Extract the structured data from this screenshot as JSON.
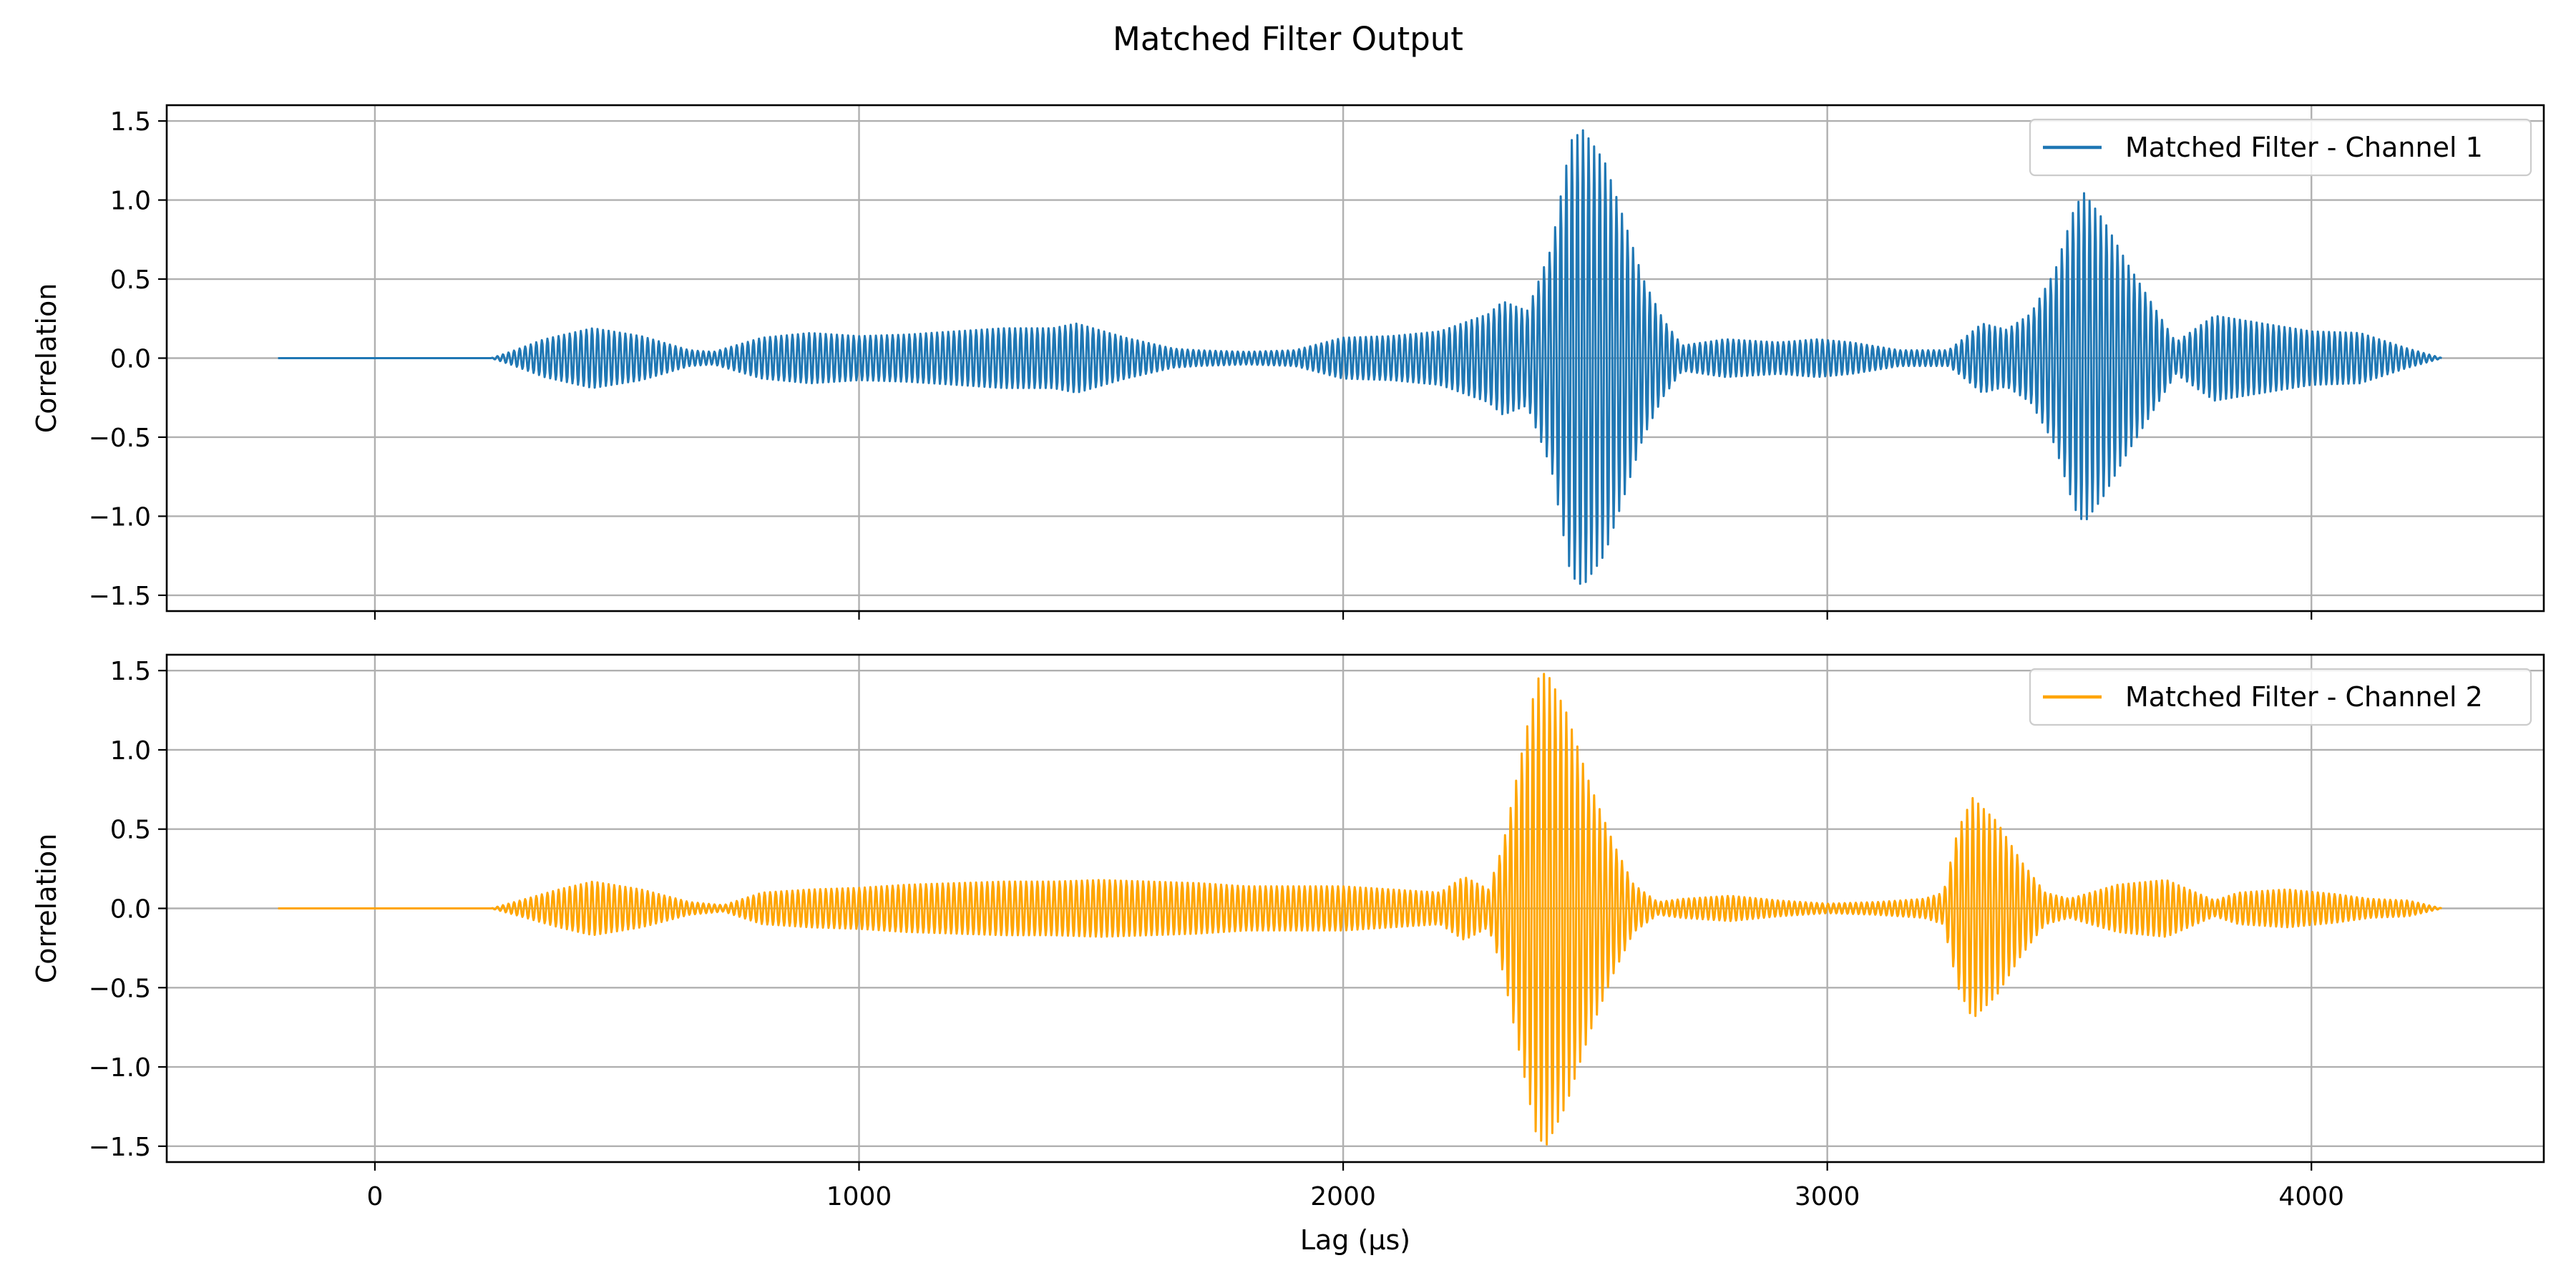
{
  "chart_data": {
    "type": "line",
    "title": "Matched Filter Output",
    "xlabel": "Lag (µs)",
    "xlim": [
      -430,
      4480
    ],
    "x_ticks": [
      {
        "value": 0,
        "label": "0"
      },
      {
        "value": 1000,
        "label": "1000"
      },
      {
        "value": 2000,
        "label": "2000"
      },
      {
        "value": 3000,
        "label": "3000"
      },
      {
        "value": 4000,
        "label": "4000"
      }
    ],
    "grid": true,
    "legend_position": "top-right",
    "signal_x_range": [
      -200,
      4270
    ],
    "panels": [
      {
        "ylabel": "Correlation",
        "ylim": [
          -1.6,
          1.6
        ],
        "y_ticks": [
          {
            "value": 1.5,
            "label": "1.5"
          },
          {
            "value": 1.0,
            "label": "1.0"
          },
          {
            "value": 0.5,
            "label": "0.5"
          },
          {
            "value": 0.0,
            "label": "0.0"
          },
          {
            "value": -0.5,
            "label": "−0.5"
          },
          {
            "value": -1.0,
            "label": "−1.0"
          },
          {
            "value": -1.5,
            "label": "−1.5"
          }
        ],
        "series": [
          {
            "name": "Matched Filter - Channel 1",
            "color": "#1f77b4",
            "envelope": [
              [
                -200,
                0
              ],
              [
                240,
                0
              ],
              [
                280,
                0.04
              ],
              [
                350,
                0.12
              ],
              [
                450,
                0.19
              ],
              [
                550,
                0.14
              ],
              [
                650,
                0.05
              ],
              [
                700,
                0.04
              ],
              [
                800,
                0.13
              ],
              [
                900,
                0.16
              ],
              [
                1000,
                0.14
              ],
              [
                1100,
                0.15
              ],
              [
                1200,
                0.17
              ],
              [
                1300,
                0.19
              ],
              [
                1400,
                0.19
              ],
              [
                1450,
                0.22
              ],
              [
                1550,
                0.13
              ],
              [
                1650,
                0.06
              ],
              [
                1700,
                0.05
              ],
              [
                1800,
                0.04
              ],
              [
                1900,
                0.05
              ],
              [
                2000,
                0.13
              ],
              [
                2100,
                0.14
              ],
              [
                2200,
                0.17
              ],
              [
                2300,
                0.28
              ],
              [
                2330,
                0.36
              ],
              [
                2380,
                0.3
              ],
              [
                2430,
                0.7
              ],
              [
                2470,
                1.38
              ],
              [
                2495,
                1.45
              ],
              [
                2540,
                1.25
              ],
              [
                2580,
                0.88
              ],
              [
                2620,
                0.5
              ],
              [
                2660,
                0.25
              ],
              [
                2700,
                0.08
              ],
              [
                2790,
                0.12
              ],
              [
                2900,
                0.1
              ],
              [
                2980,
                0.12
              ],
              [
                3050,
                0.1
              ],
              [
                3150,
                0.05
              ],
              [
                3250,
                0.05
              ],
              [
                3280,
                0.12
              ],
              [
                3320,
                0.22
              ],
              [
                3370,
                0.18
              ],
              [
                3420,
                0.28
              ],
              [
                3470,
                0.55
              ],
              [
                3510,
                0.95
              ],
              [
                3530,
                1.05
              ],
              [
                3570,
                0.88
              ],
              [
                3620,
                0.6
              ],
              [
                3670,
                0.35
              ],
              [
                3720,
                0.1
              ],
              [
                3800,
                0.27
              ],
              [
                3900,
                0.22
              ],
              [
                4000,
                0.17
              ],
              [
                4100,
                0.16
              ],
              [
                4200,
                0.06
              ],
              [
                4270,
                0
              ]
            ]
          }
        ]
      },
      {
        "ylabel": "Correlation",
        "ylim": [
          -1.6,
          1.6
        ],
        "y_ticks": [
          {
            "value": 1.5,
            "label": "1.5"
          },
          {
            "value": 1.0,
            "label": "1.0"
          },
          {
            "value": 0.5,
            "label": "0.5"
          },
          {
            "value": 0.0,
            "label": "0.0"
          },
          {
            "value": -0.5,
            "label": "−0.5"
          },
          {
            "value": -1.0,
            "label": "−1.0"
          },
          {
            "value": -1.5,
            "label": "−1.5"
          }
        ],
        "series": [
          {
            "name": "Matched Filter - Channel 2",
            "color": "#ffa500",
            "envelope": [
              [
                -200,
                0
              ],
              [
                240,
                0
              ],
              [
                300,
                0.05
              ],
              [
                380,
                0.12
              ],
              [
                450,
                0.17
              ],
              [
                550,
                0.12
              ],
              [
                650,
                0.04
              ],
              [
                720,
                0.02
              ],
              [
                800,
                0.1
              ],
              [
                900,
                0.12
              ],
              [
                1000,
                0.13
              ],
              [
                1100,
                0.15
              ],
              [
                1200,
                0.16
              ],
              [
                1300,
                0.17
              ],
              [
                1400,
                0.17
              ],
              [
                1500,
                0.18
              ],
              [
                1600,
                0.17
              ],
              [
                1700,
                0.16
              ],
              [
                1800,
                0.14
              ],
              [
                1900,
                0.14
              ],
              [
                2000,
                0.14
              ],
              [
                2100,
                0.12
              ],
              [
                2200,
                0.1
              ],
              [
                2250,
                0.2
              ],
              [
                2300,
                0.12
              ],
              [
                2330,
                0.4
              ],
              [
                2370,
                1.0
              ],
              [
                2400,
                1.45
              ],
              [
                2420,
                1.5
              ],
              [
                2460,
                1.25
              ],
              [
                2510,
                0.78
              ],
              [
                2560,
                0.4
              ],
              [
                2600,
                0.15
              ],
              [
                2650,
                0.04
              ],
              [
                2700,
                0.06
              ],
              [
                2800,
                0.08
              ],
              [
                2900,
                0.05
              ],
              [
                3000,
                0.03
              ],
              [
                3100,
                0.04
              ],
              [
                3200,
                0.06
              ],
              [
                3240,
                0.1
              ],
              [
                3270,
                0.5
              ],
              [
                3300,
                0.7
              ],
              [
                3350,
                0.55
              ],
              [
                3400,
                0.3
              ],
              [
                3450,
                0.1
              ],
              [
                3500,
                0.06
              ],
              [
                3600,
                0.15
              ],
              [
                3700,
                0.18
              ],
              [
                3800,
                0.05
              ],
              [
                3850,
                0.1
              ],
              [
                3950,
                0.12
              ],
              [
                4050,
                0.09
              ],
              [
                4120,
                0.06
              ],
              [
                4200,
                0.05
              ],
              [
                4270,
                0
              ]
            ]
          }
        ]
      }
    ]
  }
}
